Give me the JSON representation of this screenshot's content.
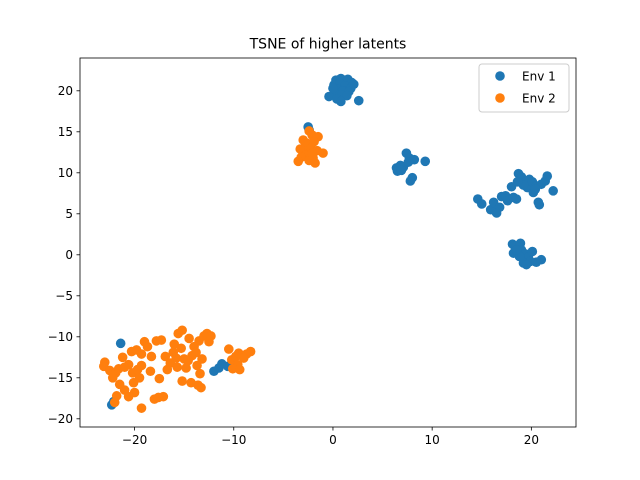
{
  "chart_data": {
    "type": "scatter",
    "title": "TSNE of higher latents",
    "xlabel": "",
    "ylabel": "",
    "xlim": [
      -25.5,
      24.5
    ],
    "ylim": [
      -21,
      24
    ],
    "xticks": [
      -20,
      -10,
      0,
      10,
      20
    ],
    "yticks": [
      -20,
      -15,
      -10,
      -5,
      0,
      5,
      10,
      15,
      20
    ],
    "xtick_labels": [
      "−20",
      "−10",
      "0",
      "10",
      "20"
    ],
    "ytick_labels": [
      "−20",
      "−15",
      "−10",
      "−5",
      "0",
      "5",
      "10",
      "15",
      "20"
    ],
    "grid": false,
    "legend_position": "top-right",
    "series": [
      {
        "name": "Env 1",
        "color": "#1f77b4",
        "points": [
          [
            0.3,
            21.3
          ],
          [
            0.8,
            21.5
          ],
          [
            1.5,
            21.4
          ],
          [
            1.9,
            21.0
          ],
          [
            0.1,
            20.7
          ],
          [
            0.7,
            20.9
          ],
          [
            1.2,
            20.6
          ],
          [
            1.8,
            20.3
          ],
          [
            0.5,
            20.2
          ],
          [
            1.0,
            20.0
          ],
          [
            1.6,
            19.9
          ],
          [
            0.2,
            19.7
          ],
          [
            0.9,
            19.5
          ],
          [
            1.4,
            19.4
          ],
          [
            -0.4,
            19.3
          ],
          [
            0.4,
            19.0
          ],
          [
            2.6,
            18.8
          ],
          [
            0.8,
            18.7
          ],
          [
            2.1,
            20.8
          ],
          [
            0.0,
            20.3
          ],
          [
            -2.5,
            15.6
          ],
          [
            -2.4,
            15.2
          ],
          [
            6.4,
            10.6
          ],
          [
            6.8,
            10.9
          ],
          [
            7.1,
            10.7
          ],
          [
            6.5,
            10.2
          ],
          [
            6.9,
            10.3
          ],
          [
            7.4,
            12.4
          ],
          [
            7.7,
            11.8
          ],
          [
            8.2,
            11.6
          ],
          [
            9.3,
            11.4
          ],
          [
            7.6,
            11.3
          ],
          [
            8.0,
            9.4
          ],
          [
            7.8,
            9.0
          ],
          [
            14.6,
            6.8
          ],
          [
            15.0,
            6.2
          ],
          [
            15.9,
            5.5
          ],
          [
            16.2,
            6.4
          ],
          [
            16.4,
            5.3
          ],
          [
            16.8,
            5.8
          ],
          [
            17.0,
            7.1
          ],
          [
            17.4,
            7.2
          ],
          [
            17.6,
            6.6
          ],
          [
            18.0,
            8.3
          ],
          [
            18.2,
            7.0
          ],
          [
            18.5,
            6.8
          ],
          [
            18.7,
            9.9
          ],
          [
            19.0,
            9.5
          ],
          [
            19.3,
            8.8
          ],
          [
            19.6,
            8.2
          ],
          [
            19.8,
            9.2
          ],
          [
            20.1,
            8.9
          ],
          [
            20.2,
            7.6
          ],
          [
            20.5,
            8.4
          ],
          [
            20.7,
            6.4
          ],
          [
            20.8,
            6.1
          ],
          [
            21.0,
            8.6
          ],
          [
            21.4,
            9.0
          ],
          [
            21.6,
            9.6
          ],
          [
            22.2,
            7.8
          ],
          [
            19.2,
            8.5
          ],
          [
            18.6,
            8.9
          ],
          [
            20.4,
            8.0
          ],
          [
            16.5,
            5.1
          ],
          [
            18.1,
            1.3
          ],
          [
            18.4,
            0.8
          ],
          [
            18.6,
            0.4
          ],
          [
            18.3,
            1.1
          ],
          [
            18.9,
            1.4
          ],
          [
            19.0,
            0.6
          ],
          [
            18.2,
            0.2
          ],
          [
            19.4,
            0.1
          ],
          [
            19.7,
            -0.3
          ],
          [
            19.9,
            -0.8
          ],
          [
            19.2,
            -1.0
          ],
          [
            20.1,
            0.4
          ],
          [
            20.5,
            -0.9
          ],
          [
            21.0,
            -0.6
          ],
          [
            19.5,
            -1.2
          ],
          [
            18.8,
            -0.2
          ],
          [
            18.5,
            0.6
          ],
          [
            -21.4,
            -10.8
          ],
          [
            -11.5,
            -13.8
          ],
          [
            -11.2,
            -13.3
          ],
          [
            -12.0,
            -14.2
          ],
          [
            -10.6,
            -13.6
          ],
          [
            -22.3,
            -18.3
          ],
          [
            -22.1,
            -17.9
          ]
        ]
      },
      {
        "name": "Env 2",
        "color": "#ff7f0e",
        "points": [
          [
            -2.4,
            15.1
          ],
          [
            -2.1,
            14.6
          ],
          [
            -1.5,
            14.4
          ],
          [
            -3.0,
            14.0
          ],
          [
            -2.6,
            13.6
          ],
          [
            -1.9,
            13.8
          ],
          [
            -2.8,
            13.2
          ],
          [
            -3.3,
            12.9
          ],
          [
            -2.2,
            13.0
          ],
          [
            -1.6,
            12.7
          ],
          [
            -1.0,
            12.4
          ],
          [
            -2.7,
            12.2
          ],
          [
            -3.2,
            11.9
          ],
          [
            -2.0,
            11.8
          ],
          [
            -3.5,
            11.4
          ],
          [
            -2.4,
            11.5
          ],
          [
            -1.8,
            11.2
          ],
          [
            -2.1,
            12.4
          ],
          [
            -23.0,
            -13.1
          ],
          [
            -23.1,
            -13.6
          ],
          [
            -22.5,
            -14.1
          ],
          [
            -21.9,
            -14.4
          ],
          [
            -21.6,
            -13.9
          ],
          [
            -21.0,
            -13.7
          ],
          [
            -20.6,
            -13.4
          ],
          [
            -20.2,
            -14.4
          ],
          [
            -19.7,
            -14.0
          ],
          [
            -19.3,
            -13.5
          ],
          [
            -21.2,
            -12.5
          ],
          [
            -20.3,
            -11.8
          ],
          [
            -19.8,
            -11.6
          ],
          [
            -19.3,
            -12.1
          ],
          [
            -19.0,
            -10.6
          ],
          [
            -18.7,
            -11.2
          ],
          [
            -18.3,
            -12.4
          ],
          [
            -17.8,
            -10.5
          ],
          [
            -17.3,
            -10.4
          ],
          [
            -16.9,
            -12.4
          ],
          [
            -16.4,
            -13.2
          ],
          [
            -16.0,
            -10.9
          ],
          [
            -15.8,
            -12.6
          ],
          [
            -15.6,
            -9.6
          ],
          [
            -15.2,
            -9.2
          ],
          [
            -15.0,
            -12.7
          ],
          [
            -14.8,
            -13.8
          ],
          [
            -14.5,
            -10.2
          ],
          [
            -14.2,
            -12.3
          ],
          [
            -14.0,
            -11.2
          ],
          [
            -13.7,
            -13.5
          ],
          [
            -13.5,
            -10.5
          ],
          [
            -13.2,
            -12.7
          ],
          [
            -13.0,
            -9.9
          ],
          [
            -12.7,
            -9.6
          ],
          [
            -12.3,
            -9.9
          ],
          [
            -13.8,
            -11.9
          ],
          [
            -14.6,
            -12.9
          ],
          [
            -15.3,
            -11.4
          ],
          [
            -16.1,
            -11.9
          ],
          [
            -17.5,
            -15.1
          ],
          [
            -18.0,
            -17.6
          ],
          [
            -17.6,
            -17.4
          ],
          [
            -17.1,
            -17.3
          ],
          [
            -16.7,
            -14.0
          ],
          [
            -15.2,
            -15.4
          ],
          [
            -14.3,
            -15.6
          ],
          [
            -13.6,
            -15.9
          ],
          [
            -13.3,
            -16.2
          ],
          [
            -13.4,
            -14.5
          ],
          [
            -19.3,
            -18.7
          ],
          [
            -20.0,
            -16.8
          ],
          [
            -20.6,
            -17.3
          ],
          [
            -21.0,
            -16.5
          ],
          [
            -21.5,
            -15.8
          ],
          [
            -22.2,
            -15.0
          ],
          [
            -21.8,
            -17.2
          ],
          [
            -22.0,
            -18.0
          ],
          [
            -20.1,
            -15.6
          ],
          [
            -19.5,
            -15.0
          ],
          [
            -10.5,
            -11.5
          ],
          [
            -10.2,
            -12.8
          ],
          [
            -9.8,
            -12.4
          ],
          [
            -9.5,
            -12.0
          ],
          [
            -9.2,
            -12.3
          ],
          [
            -8.7,
            -12.1
          ],
          [
            -8.3,
            -11.8
          ],
          [
            -9.0,
            -12.6
          ],
          [
            -9.6,
            -13.4
          ],
          [
            -10.1,
            -13.9
          ],
          [
            -9.4,
            -14.0
          ],
          [
            -12.5,
            -10.6
          ],
          [
            -15.7,
            -13.7
          ],
          [
            -18.4,
            -14.2
          ]
        ]
      }
    ]
  }
}
